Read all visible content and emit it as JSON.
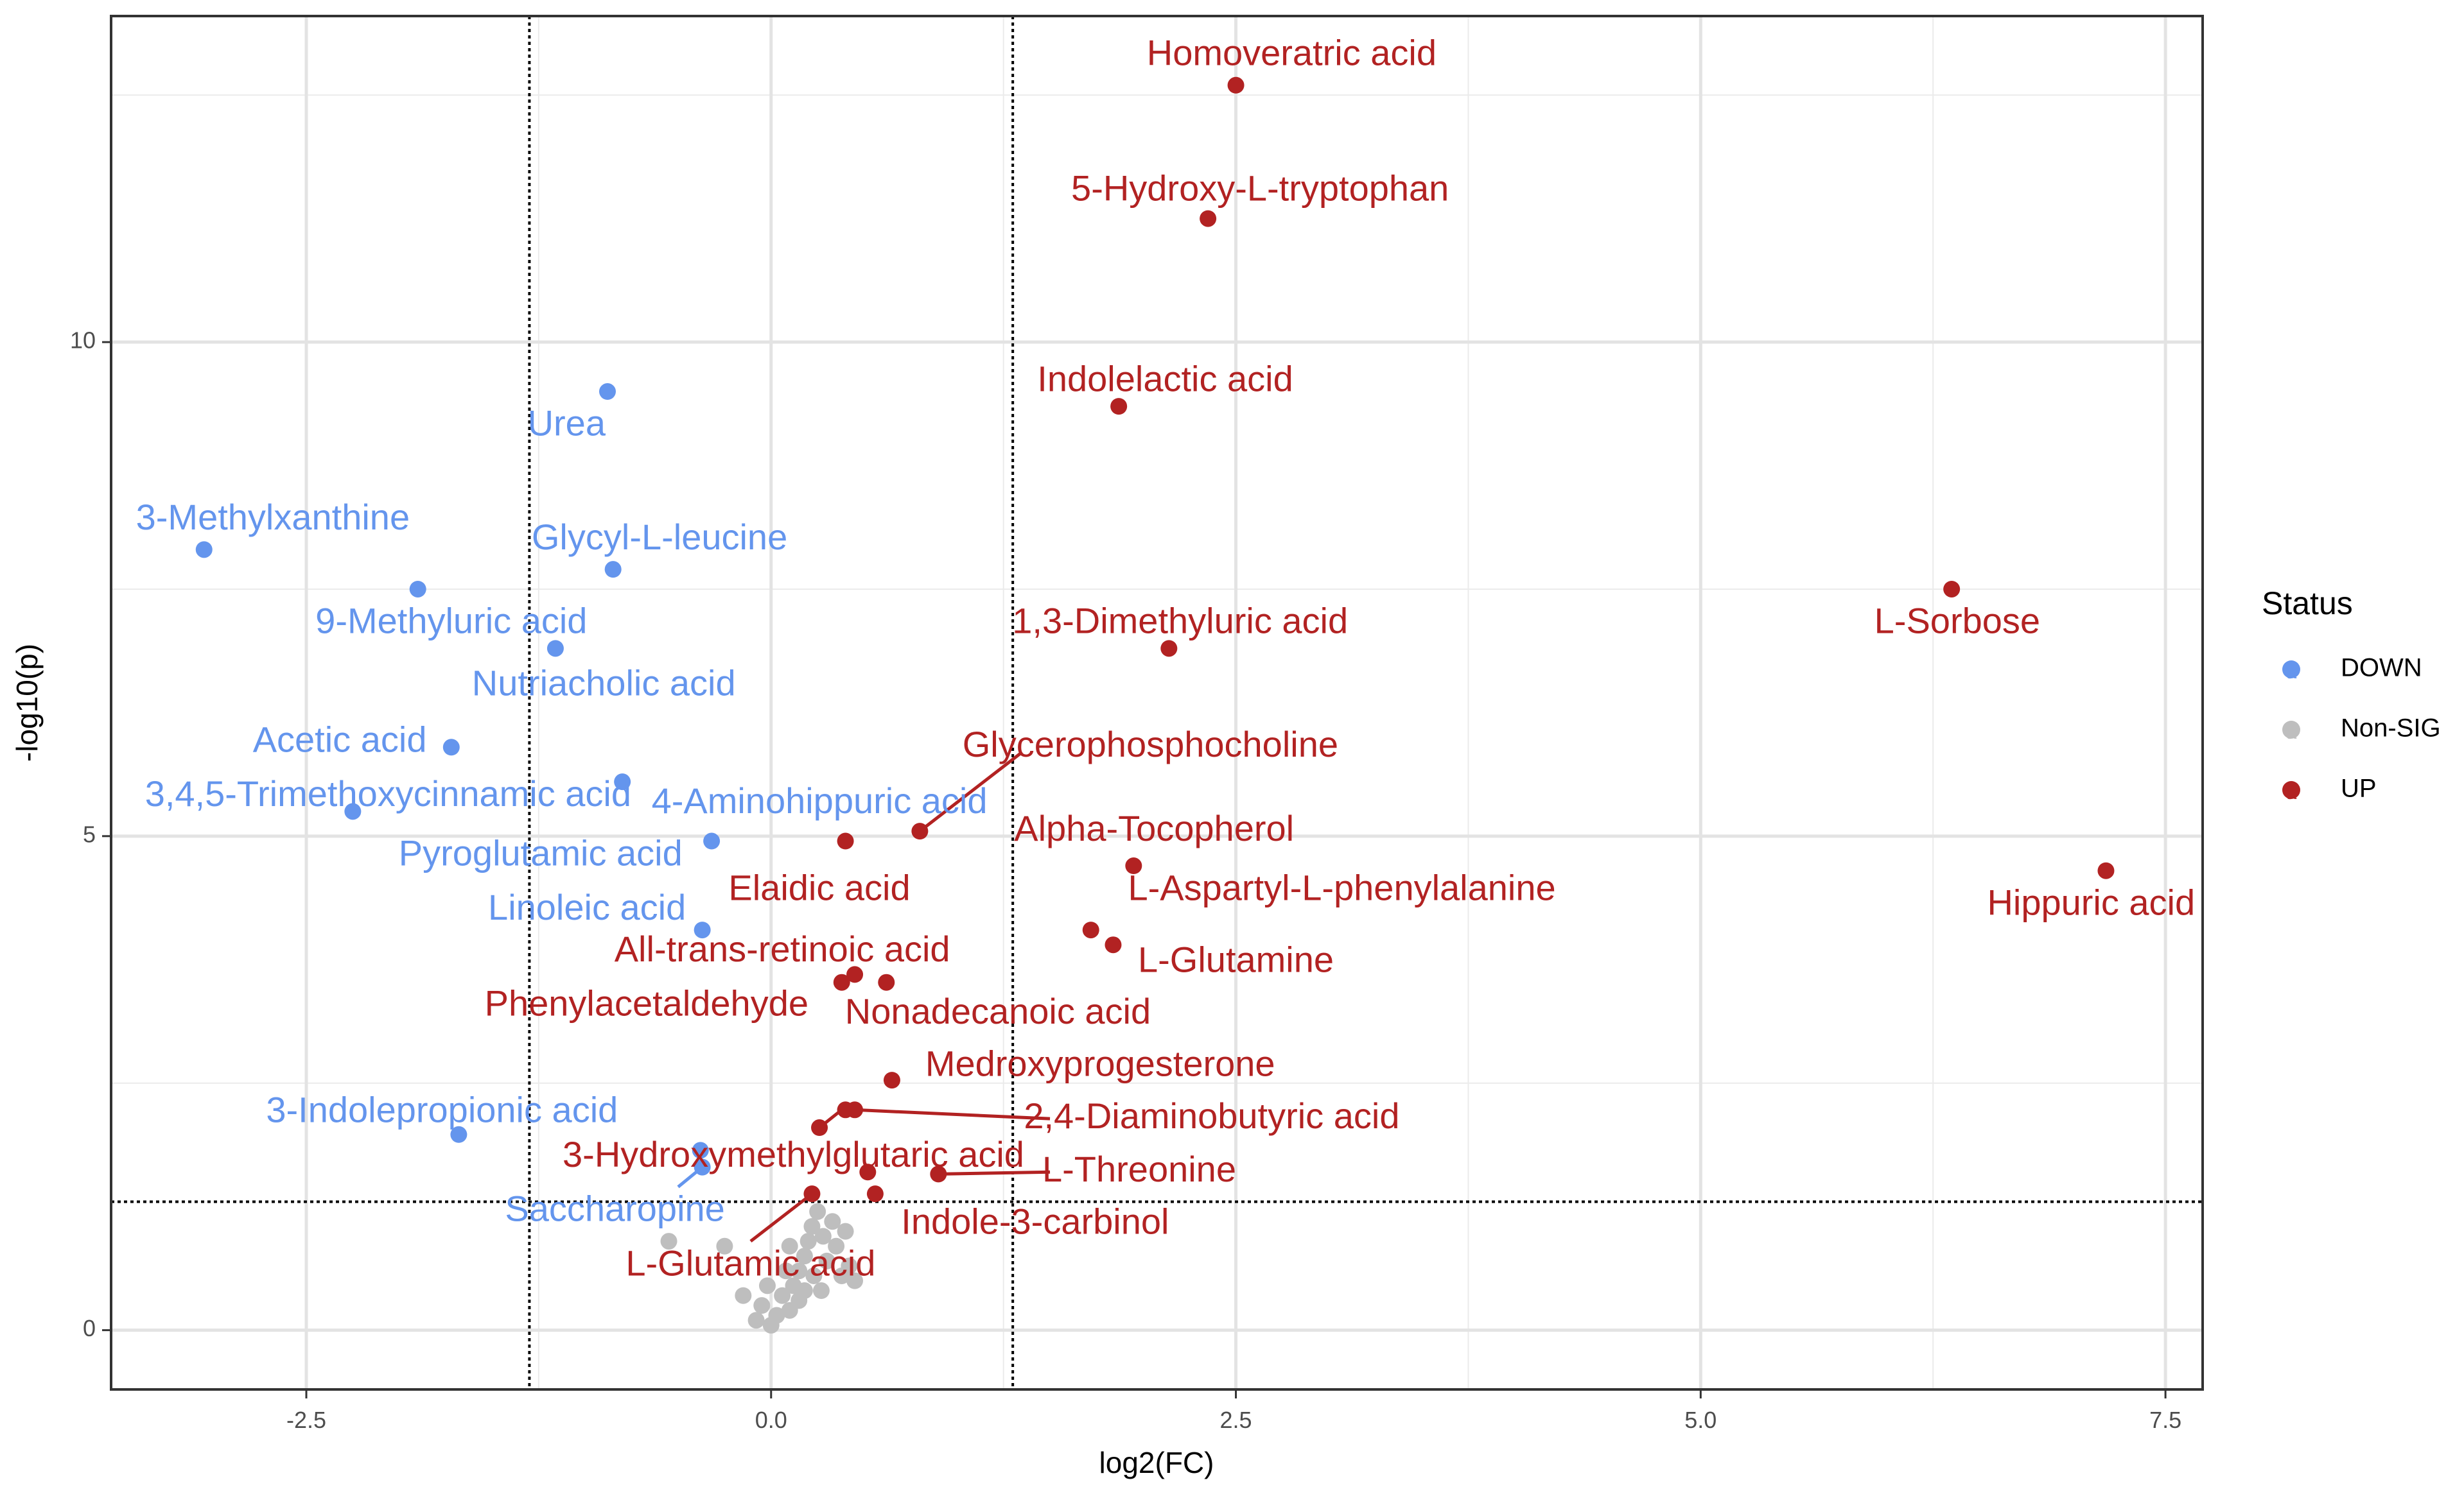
{
  "chart_data": {
    "type": "scatter",
    "title": "",
    "xlabel": "log2(FC)",
    "ylabel": "-log10(p)",
    "xlim": [
      -3.55,
      7.7
    ],
    "ylim": [
      -0.6,
      13.3
    ],
    "x_ticks": [
      -2.5,
      0.0,
      2.5,
      5.0,
      7.5
    ],
    "x_tick_labels": [
      "-2.5",
      "0.0",
      "2.5",
      "5.0",
      "7.5"
    ],
    "y_ticks": [
      0,
      5,
      10
    ],
    "y_tick_labels": [
      "0",
      "5",
      "10"
    ],
    "grid": true,
    "thresholds": {
      "x": [
        -1.3,
        1.3
      ],
      "y": 1.3
    },
    "legend": {
      "title": "Status",
      "position": "right",
      "entries": [
        {
          "label": "DOWN",
          "color": "#6495ED"
        },
        {
          "label": "Non-SIG",
          "color": "#BEBEBE"
        },
        {
          "label": "UP",
          "color": "#B22222"
        }
      ]
    },
    "points": [
      {
        "name": "Homoveratric acid",
        "x": 2.5,
        "y": 12.6,
        "status": "UP"
      },
      {
        "name": "5-Hydroxy-L-tryptophan",
        "x": 2.35,
        "y": 11.25,
        "status": "UP"
      },
      {
        "name": "Indolelactic acid",
        "x": 1.87,
        "y": 9.35,
        "status": "UP"
      },
      {
        "name": "1,3-Dimethyluric acid",
        "x": 2.14,
        "y": 6.9,
        "status": "UP"
      },
      {
        "name": "L-Sorbose",
        "x": 6.35,
        "y": 7.5,
        "status": "UP"
      },
      {
        "name": "Hippuric acid",
        "x": 7.18,
        "y": 4.65,
        "status": "UP"
      },
      {
        "name": "Glycerophosphocholine",
        "x": 0.8,
        "y": 5.05,
        "status": "UP"
      },
      {
        "name": "Alpha-Tocopherol",
        "x": 1.95,
        "y": 4.7,
        "status": "UP"
      },
      {
        "name": "Elaidic acid",
        "x": 0.4,
        "y": 4.95,
        "status": "UP"
      },
      {
        "name": "L-Aspartyl-L-phenylalanine",
        "x": 1.72,
        "y": 4.05,
        "status": "UP"
      },
      {
        "name": "L-Glutamine",
        "x": 1.84,
        "y": 3.9,
        "status": "UP"
      },
      {
        "name": "All-trans-retinoic acid",
        "x": 0.45,
        "y": 3.6,
        "status": "UP"
      },
      {
        "name": "Phenylacetaldehyde",
        "x": 0.38,
        "y": 3.52,
        "status": "UP"
      },
      {
        "name": "Nonadecanoic acid",
        "x": 0.62,
        "y": 3.52,
        "status": "UP"
      },
      {
        "name": "Medroxyprogesterone",
        "x": 0.65,
        "y": 2.53,
        "status": "UP"
      },
      {
        "name": "2,4-Diaminobutyric acid",
        "x": 0.45,
        "y": 2.23,
        "status": "UP"
      },
      {
        "name": "3-Hydroxymethylglutaric acid",
        "x": 0.26,
        "y": 2.05,
        "status": "UP"
      },
      {
        "name": "L-Threonine",
        "x": 0.9,
        "y": 1.58,
        "status": "UP"
      },
      {
        "name": "Indole-3-carbinol",
        "x": 0.56,
        "y": 1.38,
        "status": "UP"
      },
      {
        "name": "L-Glutamic acid",
        "x": 0.22,
        "y": 1.38,
        "status": "UP"
      },
      {
        "name": "(unlabeled UP point)",
        "x": 0.52,
        "y": 1.6,
        "status": "UP"
      },
      {
        "name": "(unlabeled UP point)",
        "x": 0.4,
        "y": 2.23,
        "status": "UP"
      },
      {
        "name": "Urea",
        "x": -0.88,
        "y": 9.5,
        "status": "DOWN"
      },
      {
        "name": "3-Methylxanthine",
        "x": -3.05,
        "y": 7.9,
        "status": "DOWN"
      },
      {
        "name": "Glycyl-L-leucine",
        "x": -0.85,
        "y": 7.7,
        "status": "DOWN"
      },
      {
        "name": "9-Methyluric acid",
        "x": -1.9,
        "y": 7.5,
        "status": "DOWN"
      },
      {
        "name": "Nutriacholic acid",
        "x": -1.16,
        "y": 6.9,
        "status": "DOWN"
      },
      {
        "name": "Acetic acid",
        "x": -1.72,
        "y": 5.9,
        "status": "DOWN"
      },
      {
        "name": "3,4,5-Trimethoxycinnamic acid",
        "x": -2.25,
        "y": 5.25,
        "status": "DOWN"
      },
      {
        "name": "4-Aminohippuric acid",
        "x": -0.8,
        "y": 5.55,
        "status": "DOWN"
      },
      {
        "name": "Pyroglutamic acid",
        "x": -0.32,
        "y": 4.95,
        "status": "DOWN"
      },
      {
        "name": "Linoleic acid",
        "x": -0.37,
        "y": 4.05,
        "status": "DOWN"
      },
      {
        "name": "3-Indolepropionic acid",
        "x": -1.68,
        "y": 1.98,
        "status": "DOWN"
      },
      {
        "name": "Saccharopine",
        "x": -0.37,
        "y": 1.65,
        "status": "DOWN"
      },
      {
        "name": "(unlabeled DOWN point)",
        "x": -0.38,
        "y": 1.82,
        "status": "DOWN"
      }
    ],
    "nonsig_points": [
      {
        "x": -0.55,
        "y": 0.9
      },
      {
        "x": -0.25,
        "y": 0.85
      },
      {
        "x": -0.15,
        "y": 0.35
      },
      {
        "x": -0.05,
        "y": 0.25
      },
      {
        "x": 0.0,
        "y": 0.05
      },
      {
        "x": 0.03,
        "y": 0.15
      },
      {
        "x": 0.06,
        "y": 0.35
      },
      {
        "x": 0.1,
        "y": 0.2
      },
      {
        "x": -0.08,
        "y": 0.1
      },
      {
        "x": 0.12,
        "y": 0.45
      },
      {
        "x": 0.15,
        "y": 0.6
      },
      {
        "x": 0.18,
        "y": 0.75
      },
      {
        "x": 0.2,
        "y": 0.9
      },
      {
        "x": 0.22,
        "y": 1.05
      },
      {
        "x": 0.25,
        "y": 1.2
      },
      {
        "x": 0.28,
        "y": 0.95
      },
      {
        "x": 0.3,
        "y": 0.7
      },
      {
        "x": 0.33,
        "y": 1.1
      },
      {
        "x": 0.35,
        "y": 0.85
      },
      {
        "x": 0.38,
        "y": 0.55
      },
      {
        "x": 0.4,
        "y": 1.0
      },
      {
        "x": 0.42,
        "y": 0.65
      },
      {
        "x": 0.45,
        "y": 0.5
      },
      {
        "x": 0.18,
        "y": 0.4
      },
      {
        "x": 0.08,
        "y": 0.6
      },
      {
        "x": -0.02,
        "y": 0.45
      },
      {
        "x": 0.15,
        "y": 0.3
      },
      {
        "x": 0.23,
        "y": 0.55
      },
      {
        "x": 0.27,
        "y": 0.4
      },
      {
        "x": 0.1,
        "y": 0.85
      }
    ],
    "labels": [
      {
        "text": "Homoveratric acid",
        "x": 2.8,
        "y": 12.9,
        "status": "UP"
      },
      {
        "text": "5-Hydroxy-L-tryptophan",
        "x": 2.63,
        "y": 11.53,
        "status": "UP"
      },
      {
        "text": "Indolelactic acid",
        "x": 2.12,
        "y": 9.6,
        "status": "UP"
      },
      {
        "text": "1,3-Dimethyluric acid",
        "x": 2.2,
        "y": 7.15,
        "status": "UP"
      },
      {
        "text": "L-Sorbose",
        "x": 6.38,
        "y": 7.15,
        "status": "UP"
      },
      {
        "text": "Hippuric acid",
        "x": 7.1,
        "y": 4.3,
        "status": "UP"
      },
      {
        "text": "Glycerophosphocholine",
        "x": 2.04,
        "y": 5.9,
        "status": "UP"
      },
      {
        "text": "Alpha-Tocopherol",
        "x": 2.06,
        "y": 5.05,
        "status": "UP"
      },
      {
        "text": "Elaidic acid",
        "x": 0.26,
        "y": 4.45,
        "status": "UP"
      },
      {
        "text": "L-Aspartyl-L-phenylalanine",
        "x": 3.07,
        "y": 4.45,
        "status": "UP"
      },
      {
        "text": "L-Glutamine",
        "x": 2.5,
        "y": 3.72,
        "status": "UP"
      },
      {
        "text": "All-trans-retinoic acid",
        "x": 0.06,
        "y": 3.83,
        "status": "UP"
      },
      {
        "text": "Phenylacetaldehyde",
        "x": -0.67,
        "y": 3.28,
        "status": "UP"
      },
      {
        "text": "Nonadecanoic acid",
        "x": 1.22,
        "y": 3.2,
        "status": "UP"
      },
      {
        "text": "Medroxyprogesterone",
        "x": 1.77,
        "y": 2.67,
        "status": "UP"
      },
      {
        "text": "2,4-Diaminobutyric acid",
        "x": 2.37,
        "y": 2.14,
        "status": "UP"
      },
      {
        "text": "3-Hydroxymethylglutaric acid",
        "x": 0.12,
        "y": 1.75,
        "status": "UP"
      },
      {
        "text": "L-Threonine",
        "x": 1.98,
        "y": 1.6,
        "status": "UP"
      },
      {
        "text": "Indole-3-carbinol",
        "x": 1.42,
        "y": 1.07,
        "status": "UP"
      },
      {
        "text": "L-Glutamic acid",
        "x": -0.11,
        "y": 0.65,
        "status": "UP"
      },
      {
        "text": "Urea",
        "x": -1.1,
        "y": 9.15,
        "status": "DOWN"
      },
      {
        "text": "3-Methylxanthine",
        "x": -2.68,
        "y": 8.2,
        "status": "DOWN"
      },
      {
        "text": "Glycyl-L-leucine",
        "x": -0.6,
        "y": 8.0,
        "status": "DOWN"
      },
      {
        "text": "9-Methyluric acid",
        "x": -1.72,
        "y": 7.15,
        "status": "DOWN"
      },
      {
        "text": "Nutriacholic acid",
        "x": -0.9,
        "y": 6.52,
        "status": "DOWN"
      },
      {
        "text": "Acetic acid",
        "x": -2.32,
        "y": 5.95,
        "status": "DOWN"
      },
      {
        "text": "3,4,5-Trimethoxycinnamic acid",
        "x": -2.06,
        "y": 5.4,
        "status": "DOWN"
      },
      {
        "text": "4-Aminohippuric acid",
        "x": 0.26,
        "y": 5.33,
        "status": "DOWN"
      },
      {
        "text": "Pyroglutamic acid",
        "x": -1.24,
        "y": 4.8,
        "status": "DOWN"
      },
      {
        "text": "Linoleic acid",
        "x": -0.99,
        "y": 4.25,
        "status": "DOWN"
      },
      {
        "text": "3-Indolepropionic acid",
        "x": -1.77,
        "y": 2.2,
        "status": "DOWN"
      },
      {
        "text": "Saccharopine",
        "x": -0.84,
        "y": 1.2,
        "status": "DOWN"
      }
    ],
    "leader_lines": [
      {
        "from": [
          0.8,
          5.05
        ],
        "to": [
          1.35,
          5.85
        ],
        "status": "UP"
      },
      {
        "from": [
          0.45,
          2.23
        ],
        "to": [
          1.5,
          2.14
        ],
        "status": "UP"
      },
      {
        "from": [
          0.26,
          2.05
        ],
        "to": [
          0.38,
          2.23
        ],
        "status": "UP"
      },
      {
        "from": [
          0.9,
          1.58
        ],
        "to": [
          1.5,
          1.6
        ],
        "status": "UP"
      },
      {
        "from": [
          0.22,
          1.38
        ],
        "to": [
          -0.11,
          0.9
        ],
        "status": "UP"
      },
      {
        "from": [
          -0.37,
          1.65
        ],
        "to": [
          -0.5,
          1.45
        ],
        "status": "DOWN"
      }
    ]
  }
}
